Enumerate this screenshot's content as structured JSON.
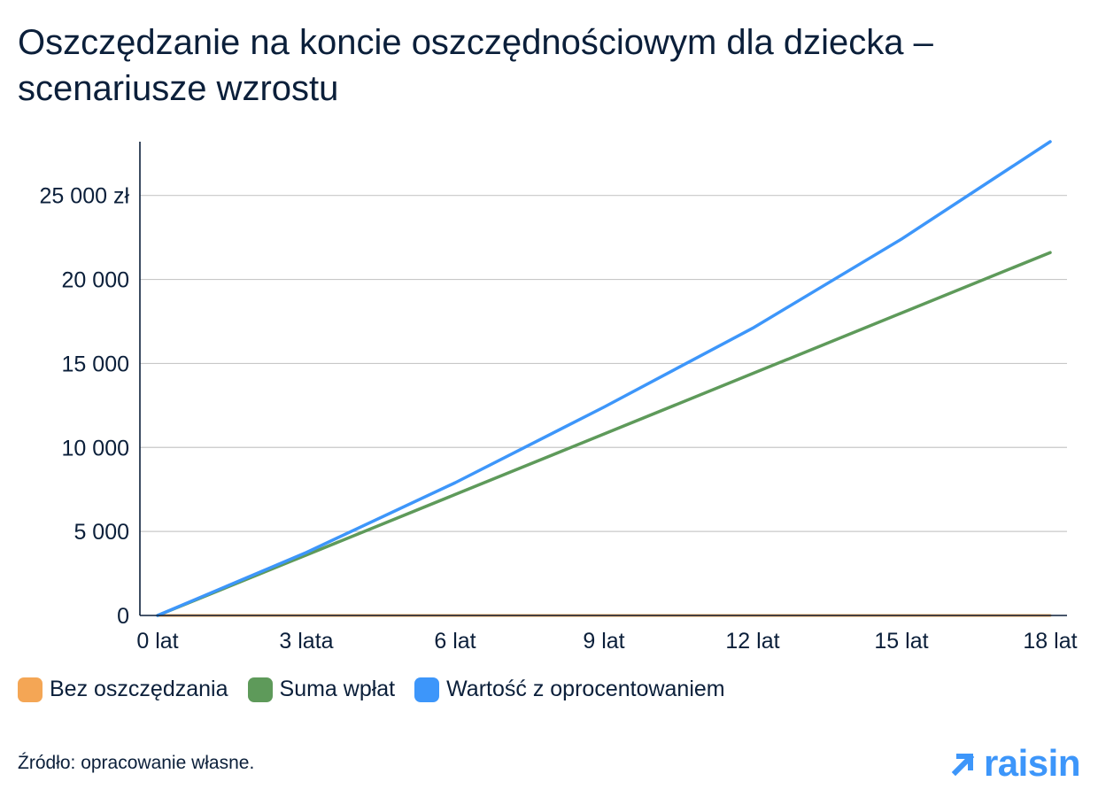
{
  "title": "Oszczędzanie na koncie oszczędnościowym dla dziecka – scenariusze wzrostu",
  "source": "Źródło: opracowanie własne.",
  "logo_text": "raisin",
  "colors": {
    "bez": "#f4a655",
    "suma": "#5e9a5a",
    "wartosc": "#3d96fa",
    "grid": "#c8c8c8",
    "axis": "#0b1f3a",
    "logo": "#3d96fa"
  },
  "chart_data": {
    "type": "line",
    "x": [
      0,
      3,
      6,
      9,
      12,
      15,
      18
    ],
    "xtick_labels": [
      "0 lat",
      "3 lata",
      "6 lat",
      "9 lat",
      "12 lat",
      "15 lat",
      "18 lat"
    ],
    "ylim": [
      0,
      28200
    ],
    "yticks": [
      0,
      5000,
      10000,
      15000,
      20000,
      25000
    ],
    "ytick_labels": [
      "0",
      "5 000",
      "10 000",
      "15 000",
      "20 000",
      "25 000 zł"
    ],
    "grid": true,
    "legend_position": "bottom-left",
    "series": [
      {
        "name": "Bez oszczędzania",
        "color": "#f4a655",
        "values": [
          0,
          0,
          0,
          0,
          0,
          0,
          0
        ]
      },
      {
        "name": "Suma wpłat",
        "color": "#5e9a5a",
        "values": [
          0,
          3600,
          7200,
          10800,
          14400,
          18000,
          21600
        ]
      },
      {
        "name": "Wartość z oprocentowaniem",
        "color": "#3d96fa",
        "values": [
          0,
          3750,
          7900,
          12400,
          17100,
          22400,
          28200
        ]
      }
    ]
  }
}
